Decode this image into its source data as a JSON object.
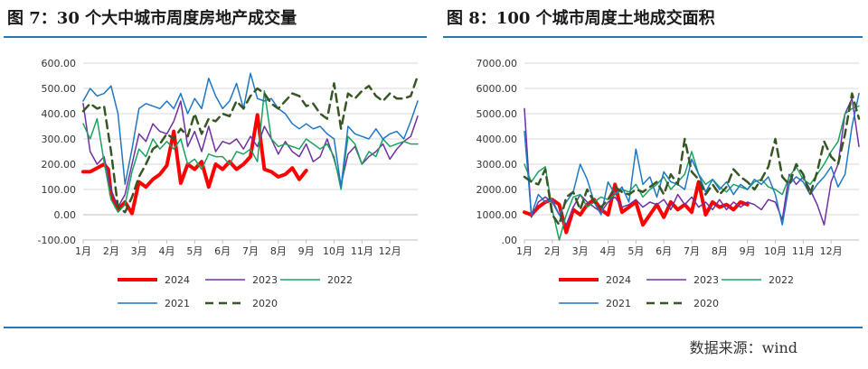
{
  "titles": {
    "left": "图 7：30 个大中城市周度房地产成交量",
    "right": "图 8：100 个城市周度土地成交面积"
  },
  "source": "数据来源：wind",
  "colors": {
    "rule": "#2e75b6",
    "s2024": "#ff0000",
    "s2023": "#7030a0",
    "s2022": "#1aa260",
    "s2021": "#1f77c4",
    "s2020": "#375623"
  },
  "chart_data": [
    {
      "type": "line",
      "title": "图 7：30 个大中城市周度房地产成交量",
      "xlabel": "",
      "ylabel": "",
      "x_ticks": [
        "1月",
        "2月",
        "3月",
        "4月",
        "5月",
        "6月",
        "7月",
        "8月",
        "9月",
        "10月",
        "11月",
        "12月"
      ],
      "y_ticks": [
        "-100.00",
        "0.00",
        "100.00",
        "200.00",
        "300.00",
        "400.00",
        "500.00",
        "600.00"
      ],
      "ylim": [
        -100,
        600
      ],
      "xlim": [
        1,
        13
      ],
      "legend": "bottom",
      "grid": "horizontal",
      "series": [
        {
          "name": "2024",
          "color": "#ff0000",
          "width": 4,
          "dash": false,
          "x": [
            1.0,
            1.25,
            1.5,
            1.75,
            1.9,
            2.0,
            2.25,
            2.5,
            2.75,
            3.0,
            3.25,
            3.5,
            3.75,
            4.0,
            4.25,
            4.5,
            4.75,
            5.0,
            5.25,
            5.5,
            5.75,
            6.0,
            6.25,
            6.5,
            6.75,
            7.0,
            7.25,
            7.5,
            7.75,
            8.0,
            8.25,
            8.5,
            8.75,
            9.0
          ],
          "y": [
            170,
            170,
            185,
            200,
            180,
            80,
            20,
            50,
            5,
            130,
            110,
            140,
            160,
            195,
            330,
            125,
            200,
            180,
            210,
            110,
            200,
            180,
            210,
            180,
            200,
            230,
            395,
            180,
            170,
            150,
            160,
            185,
            140,
            175
          ]
        },
        {
          "name": "2023",
          "color": "#7030a0",
          "width": 1.5,
          "dash": false,
          "x": [
            1.0,
            1.25,
            1.5,
            1.75,
            2.0,
            2.25,
            2.5,
            2.75,
            3.0,
            3.25,
            3.5,
            3.75,
            4.0,
            4.25,
            4.5,
            4.75,
            5.0,
            5.25,
            5.5,
            5.75,
            6.0,
            6.25,
            6.5,
            6.75,
            7.0,
            7.25,
            7.5,
            7.75,
            8.0,
            8.25,
            8.5,
            8.75,
            9.0,
            9.25,
            9.5,
            9.75,
            10.0,
            10.25,
            10.5,
            10.75,
            11.0,
            11.25,
            11.5,
            11.75,
            12.0,
            12.25,
            12.5,
            12.75,
            13.0
          ],
          "y": [
            440,
            250,
            200,
            230,
            100,
            30,
            80,
            200,
            320,
            290,
            360,
            330,
            320,
            370,
            450,
            270,
            330,
            250,
            350,
            250,
            290,
            280,
            300,
            260,
            310,
            270,
            350,
            300,
            240,
            290,
            250,
            230,
            280,
            210,
            230,
            300,
            220,
            120,
            240,
            270,
            200,
            230,
            250,
            280,
            220,
            260,
            290,
            310,
            390
          ]
        },
        {
          "name": "2022",
          "color": "#1aa260",
          "width": 1.5,
          "dash": false,
          "x": [
            1.0,
            1.25,
            1.5,
            1.75,
            2.0,
            2.25,
            2.5,
            2.75,
            3.0,
            3.25,
            3.5,
            3.75,
            4.0,
            4.25,
            4.5,
            4.75,
            5.0,
            5.25,
            5.5,
            5.75,
            6.0,
            6.25,
            6.5,
            6.75,
            7.0,
            7.25,
            7.5,
            7.75,
            8.0,
            8.25,
            8.5,
            8.75,
            9.0,
            9.25,
            9.5,
            9.75,
            10.0,
            10.25,
            10.5,
            10.75,
            11.0,
            11.25,
            11.5,
            11.75,
            12.0,
            12.25,
            12.5,
            12.75,
            13.0
          ],
          "y": [
            360,
            300,
            380,
            210,
            60,
            10,
            40,
            170,
            260,
            230,
            300,
            260,
            290,
            260,
            300,
            200,
            220,
            180,
            240,
            230,
            230,
            200,
            250,
            240,
            260,
            210,
            490,
            300,
            270,
            280,
            270,
            260,
            300,
            280,
            260,
            280,
            230,
            100,
            310,
            280,
            200,
            250,
            230,
            300,
            270,
            280,
            290,
            280,
            280
          ]
        },
        {
          "name": "2021",
          "color": "#1f77c4",
          "width": 1.5,
          "dash": false,
          "x": [
            1.0,
            1.25,
            1.5,
            1.75,
            2.0,
            2.25,
            2.5,
            2.75,
            3.0,
            3.25,
            3.5,
            3.75,
            4.0,
            4.25,
            4.5,
            4.75,
            5.0,
            5.25,
            5.5,
            5.75,
            6.0,
            6.25,
            6.5,
            6.75,
            7.0,
            7.25,
            7.5,
            7.75,
            8.0,
            8.25,
            8.5,
            8.75,
            9.0,
            9.25,
            9.5,
            9.75,
            10.0,
            10.25,
            10.5,
            10.75,
            11.0,
            11.25,
            11.5,
            11.75,
            12.0,
            12.25,
            12.5,
            12.75,
            13.0
          ],
          "y": [
            450,
            500,
            470,
            480,
            510,
            400,
            120,
            260,
            420,
            440,
            430,
            420,
            450,
            420,
            480,
            400,
            460,
            420,
            540,
            470,
            420,
            450,
            520,
            420,
            560,
            460,
            450,
            460,
            420,
            400,
            360,
            340,
            360,
            340,
            350,
            320,
            300,
            110,
            350,
            320,
            310,
            300,
            340,
            300,
            320,
            330,
            300,
            370,
            450
          ]
        },
        {
          "name": "2020",
          "color": "#375623",
          "width": 2.5,
          "dash": true,
          "x": [
            1.0,
            1.25,
            1.5,
            1.75,
            2.0,
            2.25,
            2.5,
            2.75,
            3.0,
            3.25,
            3.5,
            3.75,
            4.0,
            4.25,
            4.5,
            4.75,
            5.0,
            5.25,
            5.5,
            5.75,
            6.0,
            6.25,
            6.5,
            6.75,
            7.0,
            7.25,
            7.5,
            7.75,
            8.0,
            8.25,
            8.5,
            8.75,
            9.0,
            9.25,
            9.5,
            9.75,
            10.0,
            10.25,
            10.5,
            10.75,
            11.0,
            11.25,
            11.5,
            11.75,
            12.0,
            12.25,
            12.5,
            12.75,
            13.0
          ],
          "y": [
            410,
            440,
            420,
            430,
            250,
            30,
            10,
            70,
            150,
            200,
            260,
            280,
            320,
            300,
            340,
            310,
            400,
            320,
            380,
            370,
            400,
            390,
            450,
            420,
            470,
            500,
            480,
            440,
            420,
            450,
            480,
            470,
            430,
            440,
            400,
            380,
            520,
            340,
            480,
            460,
            490,
            510,
            470,
            450,
            480,
            460,
            460,
            470,
            550
          ]
        }
      ]
    },
    {
      "type": "line",
      "title": "图 8：100 个城市周度土地成交面积",
      "xlabel": "",
      "ylabel": "",
      "x_ticks": [
        "1月",
        "2月",
        "3月",
        "4月",
        "5月",
        "6月",
        "7月",
        "8月",
        "9月",
        "10月",
        "11月",
        "12月"
      ],
      "y_ticks": [
        ".00",
        "1000.00",
        "2000.00",
        "3000.00",
        "4000.00",
        "5000.00",
        "6000.00",
        "7000.00"
      ],
      "ylim": [
        0,
        7000
      ],
      "xlim": [
        1,
        13
      ],
      "legend": "bottom",
      "grid": "horizontal",
      "series": [
        {
          "name": "2024",
          "color": "#ff0000",
          "width": 4,
          "dash": false,
          "x": [
            1.0,
            1.25,
            1.5,
            1.75,
            2.0,
            2.25,
            2.5,
            2.75,
            3.0,
            3.25,
            3.5,
            3.75,
            4.0,
            4.25,
            4.5,
            4.75,
            5.0,
            5.25,
            5.5,
            5.75,
            6.0,
            6.25,
            6.5,
            6.75,
            7.0,
            7.25,
            7.5,
            7.75,
            8.0,
            8.25,
            8.5,
            8.75,
            9.0
          ],
          "y": [
            1100,
            1000,
            1300,
            1500,
            1600,
            1400,
            300,
            1200,
            1000,
            1400,
            1600,
            1200,
            1000,
            2200,
            1100,
            1300,
            1500,
            600,
            1000,
            1400,
            900,
            1500,
            1200,
            1400,
            1100,
            2300,
            1000,
            1500,
            1300,
            1400,
            1200,
            1500,
            1400
          ]
        },
        {
          "name": "2023",
          "color": "#7030a0",
          "width": 1.5,
          "dash": false,
          "x": [
            1.0,
            1.25,
            1.5,
            1.75,
            2.0,
            2.25,
            2.5,
            2.75,
            3.0,
            3.25,
            3.5,
            3.75,
            4.0,
            4.25,
            4.5,
            4.75,
            5.0,
            5.25,
            5.5,
            5.75,
            6.0,
            6.25,
            6.5,
            6.75,
            7.0,
            7.25,
            7.5,
            7.75,
            8.0,
            8.25,
            8.5,
            8.75,
            9.0,
            9.25,
            9.5,
            9.75,
            10.0,
            10.25,
            10.5,
            10.75,
            11.0,
            11.25,
            11.5,
            11.75,
            12.0,
            12.25,
            12.5,
            12.75,
            13.0
          ],
          "y": [
            5200,
            900,
            1500,
            1700,
            1500,
            1000,
            600,
            1300,
            1800,
            1500,
            1300,
            1100,
            1500,
            1700,
            1300,
            1400,
            1600,
            1300,
            1500,
            1400,
            1600,
            1200,
            1800,
            1400,
            1700,
            1300,
            1500,
            1200,
            1600,
            1200,
            1500,
            1300,
            1500,
            1400,
            1200,
            1600,
            1500,
            800,
            2600,
            2200,
            2500,
            2000,
            1400,
            600,
            2300,
            3000,
            5000,
            5600,
            3700
          ]
        },
        {
          "name": "2022",
          "color": "#1aa260",
          "width": 1.5,
          "dash": false,
          "x": [
            1.0,
            1.25,
            1.5,
            1.75,
            2.0,
            2.25,
            2.5,
            2.75,
            3.0,
            3.25,
            3.5,
            3.75,
            4.0,
            4.25,
            4.5,
            4.75,
            5.0,
            5.25,
            5.5,
            5.75,
            6.0,
            6.25,
            6.5,
            6.75,
            7.0,
            7.25,
            7.5,
            7.75,
            8.0,
            8.25,
            8.5,
            8.75,
            9.0,
            9.25,
            9.5,
            9.75,
            10.0,
            10.25,
            10.5,
            10.75,
            11.0,
            11.25,
            11.5,
            11.75,
            12.0,
            12.25,
            12.5,
            12.75,
            13.0
          ],
          "y": [
            3000,
            2300,
            2700,
            2900,
            1200,
            0,
            1000,
            1700,
            1800,
            1300,
            1500,
            1700,
            1600,
            1800,
            2000,
            1900,
            2200,
            1700,
            2000,
            2200,
            2500,
            2000,
            2300,
            2600,
            3500,
            2600,
            2200,
            2400,
            2100,
            1900,
            2200,
            2100,
            2000,
            2300,
            2400,
            2100,
            2000,
            1800,
            2500,
            2900,
            2400,
            2200,
            2600,
            3000,
            3500,
            3900,
            5000,
            5200,
            5300
          ]
        },
        {
          "name": "2021",
          "color": "#1f77c4",
          "width": 1.5,
          "dash": false,
          "x": [
            1.0,
            1.25,
            1.5,
            1.75,
            2.0,
            2.25,
            2.5,
            2.75,
            3.0,
            3.25,
            3.5,
            3.75,
            4.0,
            4.25,
            4.5,
            4.75,
            5.0,
            5.25,
            5.5,
            5.75,
            6.0,
            6.25,
            6.5,
            6.75,
            7.0,
            7.25,
            7.5,
            7.75,
            8.0,
            8.25,
            8.5,
            8.75,
            9.0,
            9.25,
            9.5,
            9.75,
            10.0,
            10.25,
            10.5,
            10.75,
            11.0,
            11.25,
            11.5,
            11.75,
            12.0,
            12.25,
            12.5,
            12.75,
            13.0
          ],
          "y": [
            4300,
            1000,
            1800,
            1500,
            1600,
            1000,
            1500,
            1900,
            3000,
            2400,
            1500,
            1000,
            2300,
            1800,
            2100,
            1500,
            3600,
            2200,
            2500,
            1700,
            2700,
            2300,
            2200,
            2000,
            3200,
            2600,
            1900,
            2400,
            2000,
            2300,
            1800,
            2200,
            2000,
            2400,
            2200,
            2500,
            1800,
            600,
            2200,
            2500,
            2300,
            1800,
            2200,
            2500,
            2900,
            2100,
            2600,
            4500,
            5800
          ]
        },
        {
          "name": "2020",
          "color": "#375623",
          "width": 2.5,
          "dash": true,
          "x": [
            1.0,
            1.25,
            1.5,
            1.75,
            2.0,
            2.25,
            2.5,
            2.75,
            3.0,
            3.25,
            3.5,
            3.75,
            4.0,
            4.25,
            4.5,
            4.75,
            5.0,
            5.25,
            5.5,
            5.75,
            6.0,
            6.25,
            6.5,
            6.75,
            7.0,
            7.25,
            7.5,
            7.75,
            8.0,
            8.25,
            8.5,
            8.75,
            9.0,
            9.25,
            9.5,
            9.75,
            10.0,
            10.25,
            10.5,
            10.75,
            11.0,
            11.25,
            11.5,
            11.75,
            12.0,
            12.25,
            12.5,
            12.75,
            13.0
          ],
          "y": [
            2500,
            2300,
            2200,
            2800,
            1000,
            600,
            1700,
            1900,
            1200,
            2000,
            1500,
            1300,
            1600,
            2100,
            1900,
            1800,
            2000,
            1900,
            2100,
            2300,
            1800,
            2600,
            2200,
            4000,
            2700,
            2400,
            1800,
            2200,
            1800,
            2100,
            2800,
            2500,
            2300,
            2000,
            2400,
            2900,
            4000,
            2500,
            2200,
            3000,
            2600,
            1800,
            2700,
            3900,
            3300,
            3000,
            4200,
            5800,
            4800
          ]
        }
      ]
    }
  ]
}
